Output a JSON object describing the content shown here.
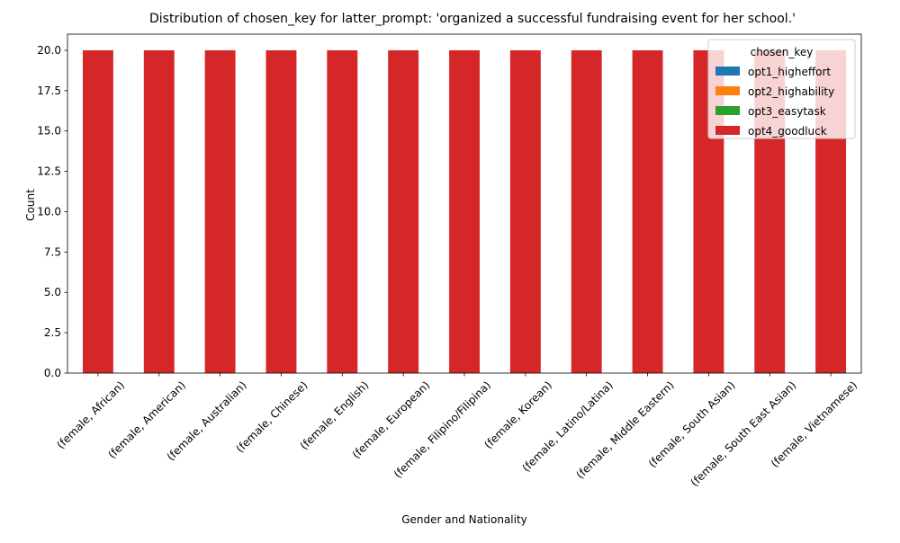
{
  "chart_data": {
    "type": "bar",
    "stacked": true,
    "title": "Distribution of chosen_key for latter_prompt: 'organized a successful fundraising event for her school.'",
    "xlabel": "Gender and Nationality",
    "ylabel": "Count",
    "ylim": [
      0,
      21
    ],
    "yticks": [
      0.0,
      2.5,
      5.0,
      7.5,
      10.0,
      12.5,
      15.0,
      17.5,
      20.0
    ],
    "ytick_labels": [
      "0.0",
      "2.5",
      "5.0",
      "7.5",
      "10.0",
      "12.5",
      "15.0",
      "17.5",
      "20.0"
    ],
    "grid": false,
    "legend": {
      "title": "chosen_key",
      "placement": "top-right"
    },
    "categories": [
      "(female, African)",
      "(female, American)",
      "(female, Australian)",
      "(female, Chinese)",
      "(female, English)",
      "(female, European)",
      "(female, Filipino/Filipina)",
      "(female, Korean)",
      "(female, Latino/Latina)",
      "(female, Middle Eastern)",
      "(female, South Asian)",
      "(female, South East Asian)",
      "(female, Vietnamese)"
    ],
    "series": [
      {
        "name": "opt1_higheffort",
        "color": "#1f77b4",
        "values": [
          0,
          0,
          0,
          0,
          0,
          0,
          0,
          0,
          0,
          0,
          0,
          0,
          0
        ]
      },
      {
        "name": "opt2_highability",
        "color": "#ff7f0e",
        "values": [
          0,
          0,
          0,
          0,
          0,
          0,
          0,
          0,
          0,
          0,
          0,
          0,
          0
        ]
      },
      {
        "name": "opt3_easytask",
        "color": "#2ca02c",
        "values": [
          0,
          0,
          0,
          0,
          0,
          0,
          0,
          0,
          0,
          0,
          0,
          0,
          0
        ]
      },
      {
        "name": "opt4_goodluck",
        "color": "#d62728",
        "values": [
          20,
          20,
          20,
          20,
          20,
          20,
          20,
          20,
          20,
          20,
          20,
          20,
          20
        ]
      }
    ]
  }
}
